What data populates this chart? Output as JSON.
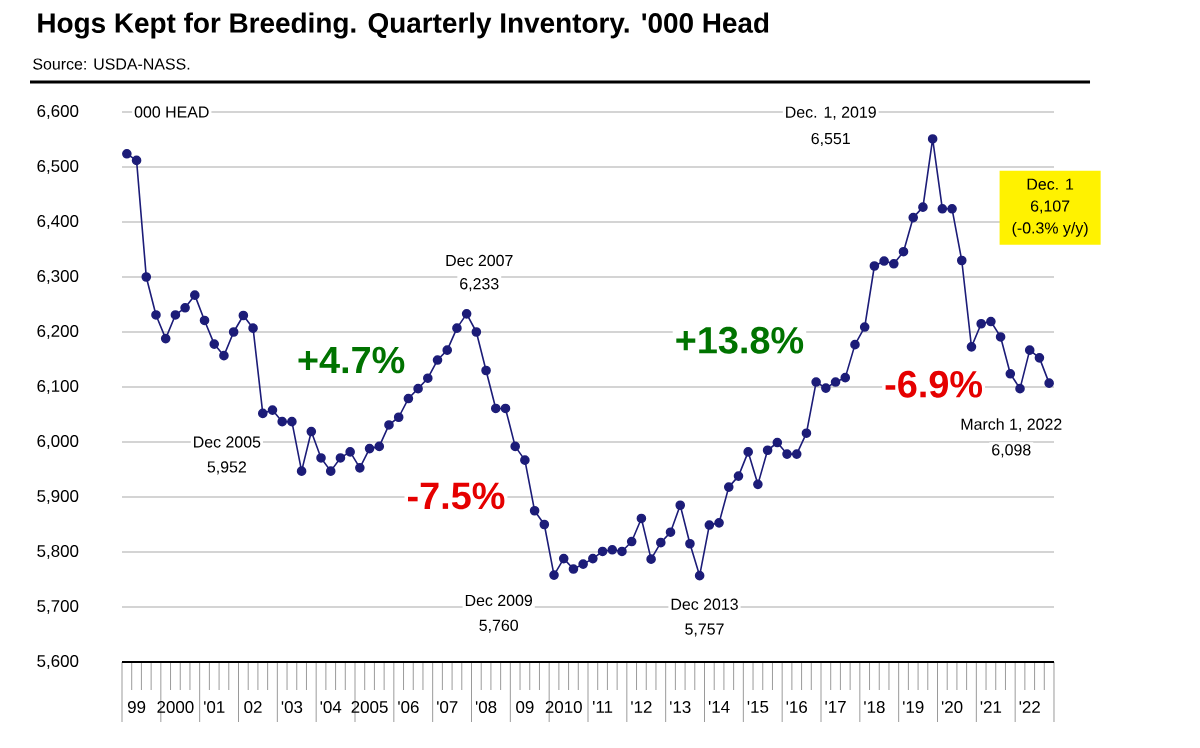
{
  "chart_data": {
    "type": "line",
    "title": "Hogs Kept for Breeding.  Quarterly Inventory.  '000 Head",
    "subtitle": "Source: USDA-NASS.",
    "categories": [
      null,
      "99",
      null,
      null,
      null,
      "2000",
      null,
      null,
      null,
      "'01",
      null,
      null,
      null,
      "02",
      null,
      null,
      null,
      "'03",
      null,
      null,
      null,
      "'04",
      null,
      null,
      null,
      "2005",
      null,
      null,
      null,
      "'06",
      null,
      null,
      null,
      "'07",
      null,
      null,
      null,
      "'08",
      null,
      null,
      null,
      "09",
      null,
      null,
      null,
      "2010",
      null,
      null,
      null,
      "'11",
      null,
      null,
      null,
      "'12",
      null,
      null,
      null,
      "'13",
      null,
      null,
      null,
      "'14",
      null,
      null,
      null,
      "'15",
      null,
      null,
      null,
      "'16",
      null,
      null,
      null,
      "'17",
      null,
      null,
      null,
      "'18",
      null,
      null,
      null,
      "'19",
      null,
      null,
      null,
      "'20",
      null,
      null,
      null,
      "'21",
      null,
      null,
      null,
      "'22",
      null,
      null
    ],
    "values": [
      6524,
      6512,
      6300,
      6231,
      6188,
      6231,
      6244,
      6267,
      6221,
      6178,
      6157,
      6200,
      6230,
      6207,
      6052,
      6058,
      6037,
      6037,
      5947,
      6019,
      5971,
      5947,
      5971,
      5982,
      5953,
      5988,
      5992,
      6031,
      6045,
      6079,
      6097,
      6116,
      6149,
      6167,
      6207,
      6233,
      6200,
      6130,
      6061,
      6061,
      5992,
      5967,
      5875,
      5850,
      5758,
      5788,
      5769,
      5778,
      5788,
      5801,
      5804,
      5801,
      5819,
      5861,
      5787,
      5817,
      5836,
      5885,
      5815,
      5757,
      5849,
      5853,
      5918,
      5938,
      5982,
      5923,
      5985,
      5999,
      5978,
      5978,
      6016,
      6109,
      6098,
      6109,
      6117,
      6177,
      6209,
      6320,
      6329,
      6324,
      6346,
      6408,
      6427,
      6551,
      6424,
      6424,
      6330,
      6173,
      6215,
      6219,
      6191,
      6124,
      6097,
      6167,
      6153,
      6107
    ],
    "color": "#1c1c78",
    "marker": "circle",
    "grid": "y",
    "ylim": [
      5600,
      6600
    ],
    "yticks": [
      {
        "value": 5600,
        "label": "5,600"
      },
      {
        "value": 5700,
        "label": "5,700"
      },
      {
        "value": 5800,
        "label": "5,800"
      },
      {
        "value": 5900,
        "label": "5,900"
      },
      {
        "value": 6000,
        "label": "6,000"
      },
      {
        "value": 6100,
        "label": "6,100"
      },
      {
        "value": 6200,
        "label": "6,200"
      },
      {
        "value": 6300,
        "label": "6,300"
      },
      {
        "value": 6400,
        "label": "6,400"
      },
      {
        "value": 6500,
        "label": "6,500"
      },
      {
        "value": 6600,
        "label": "6,600"
      }
    ],
    "annotations": [
      "000 HEAD",
      "Dec 2005",
      "5,952",
      "Dec 2007",
      "6,233",
      "Dec 2009",
      "5,760",
      "Dec 2013",
      "5,757",
      "Dec. 1, 2019",
      "6,551",
      "Dec. 1",
      "6,107",
      "(-0.3% y/y)",
      "March 1, 2022",
      "6,098",
      "+4.7%",
      "-7.5%",
      "+13.8%",
      "-6.9%"
    ]
  }
}
